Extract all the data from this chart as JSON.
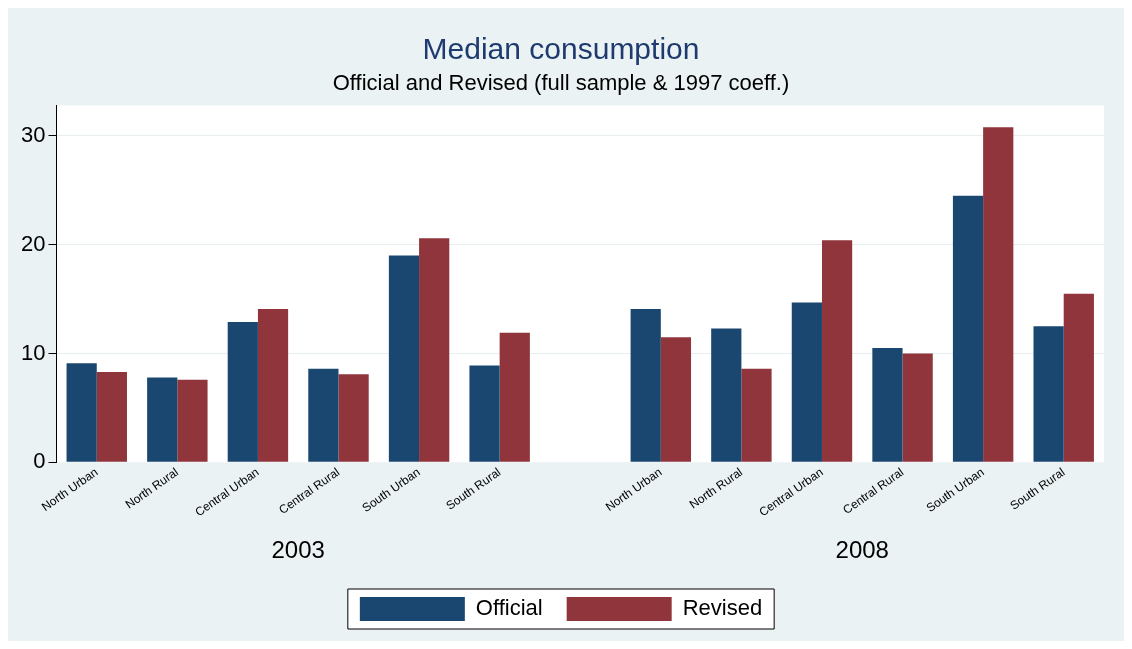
{
  "chart_data": {
    "type": "bar",
    "title": "Median consumption",
    "subtitle": "Official and Revised (full sample & 1997 coeff.)",
    "categories": [
      "North Urban",
      "North Rural",
      "Central Urban",
      "Central Rural",
      "South Urban",
      "South Rural",
      null,
      "North Urban",
      "North Rural",
      "Central Urban",
      "Central Rural",
      "South Urban",
      "South Rural"
    ],
    "series": [
      {
        "name": "Official",
        "color": "#1a476f",
        "values": [
          9.1,
          7.8,
          12.9,
          8.6,
          19.0,
          8.9,
          null,
          14.1,
          12.3,
          14.7,
          10.5,
          24.5,
          12.5
        ]
      },
      {
        "name": "Revised",
        "color": "#90353b",
        "values": [
          8.3,
          7.6,
          14.1,
          8.1,
          20.6,
          11.9,
          null,
          11.5,
          8.6,
          20.4,
          10.0,
          30.8,
          15.5
        ]
      }
    ],
    "ylim": [
      0,
      32.8
    ],
    "yticks": [
      0,
      10,
      20,
      30
    ],
    "grid": "y",
    "legend": "bottom",
    "annotations": [
      "2003",
      "2008"
    ]
  }
}
